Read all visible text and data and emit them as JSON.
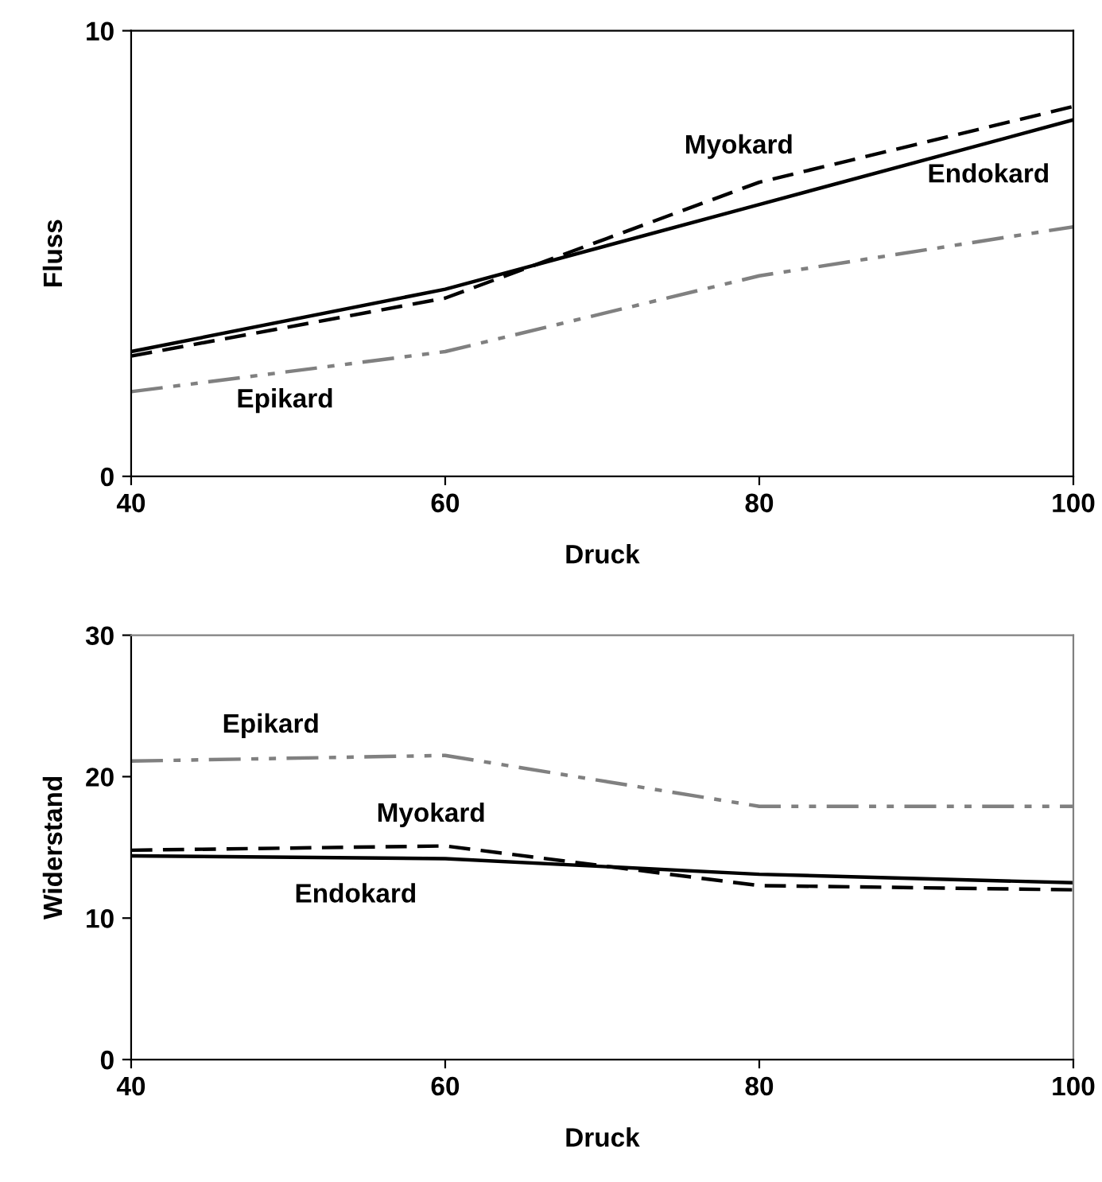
{
  "chart_data": [
    {
      "type": "line",
      "xlabel": "Druck",
      "ylabel": "Fluss",
      "x": [
        40,
        60,
        80,
        100
      ],
      "xlim": [
        40,
        100
      ],
      "xticks": [
        40,
        60,
        80,
        100
      ],
      "ylim": [
        0,
        10
      ],
      "yticks": [
        0,
        10
      ],
      "grid": false,
      "legend": false,
      "marker": "none",
      "series": [
        {
          "name": "Endokard",
          "color": "#000000",
          "line_style": "solid",
          "values": [
            2.8,
            4.2,
            6.1,
            8.0
          ]
        },
        {
          "name": "Myokard",
          "color": "#000000",
          "line_style": "dashed",
          "values": [
            2.7,
            4.0,
            6.6,
            8.3
          ]
        },
        {
          "name": "Epikard",
          "color": "#808080",
          "line_style": "dashdot",
          "values": [
            1.9,
            2.8,
            4.5,
            5.6
          ]
        }
      ]
    },
    {
      "type": "line",
      "xlabel": "Druck",
      "ylabel": "Widerstand",
      "x": [
        40,
        60,
        80,
        100
      ],
      "xlim": [
        40,
        100
      ],
      "xticks": [
        40,
        60,
        80,
        100
      ],
      "ylim": [
        0,
        30
      ],
      "yticks": [
        0,
        10,
        20,
        30
      ],
      "grid": false,
      "legend": false,
      "marker": "none",
      "series": [
        {
          "name": "Endokard",
          "color": "#000000",
          "line_style": "solid",
          "values": [
            14.4,
            14.2,
            13.1,
            12.5
          ]
        },
        {
          "name": "Myokard",
          "color": "#000000",
          "line_style": "dashed",
          "values": [
            14.8,
            15.1,
            12.3,
            12.0
          ]
        },
        {
          "name": "Epikard",
          "color": "#808080",
          "line_style": "dashdot",
          "values": [
            21.1,
            21.5,
            17.9,
            17.9
          ]
        }
      ]
    }
  ]
}
